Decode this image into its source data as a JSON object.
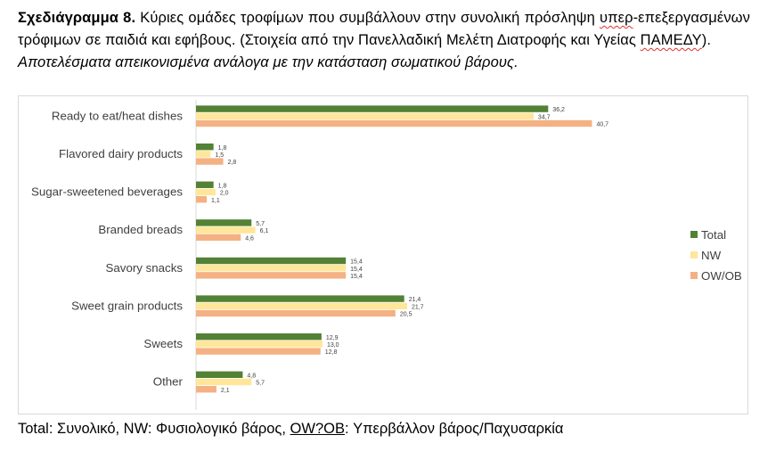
{
  "caption": {
    "lead": "Σχεδιάγραμμα 8.",
    "text_a": "Κύριες ομάδες τροφίμων που συμβάλλουν στην συνολική πρόσληψη ",
    "text_squig1": "υπερ",
    "text_b": "-επεξεργασμένων τρόφιμων σε παιδιά και εφήβους. (Στοιχεία από την Πανελλαδική Μελέτη Διατροφής και Υγείας ",
    "text_squig2": "ΠΑΜΕΔΥ",
    "text_c": ").",
    "line2": "Αποτελέσματα απεικονισμένα ανάλογα με την κατάσταση σωματικού βάρους."
  },
  "footnote": {
    "part1": "Total: Συνολικό, NW: Φυσιολογικό βάρος, ",
    "part2": "OW?OB",
    "part3": ": Υπερβάλλον βάρος/Παχυσαρκία"
  },
  "chart_data": {
    "type": "bar",
    "orientation": "horizontal",
    "categories": [
      "Ready to eat/heat dishes",
      "Flavored dairy products",
      "Sugar-sweetened beverages",
      "Branded breads",
      "Savory snacks",
      "Sweet grain products",
      "Sweets",
      "Other"
    ],
    "series": [
      {
        "name": "Total",
        "color": "#538135",
        "values": [
          36.2,
          1.8,
          1.8,
          5.7,
          15.4,
          21.4,
          12.9,
          4.8
        ]
      },
      {
        "name": "NW",
        "color": "#ffe699",
        "values": [
          34.7,
          1.5,
          2.0,
          6.1,
          15.4,
          21.7,
          13.0,
          5.7
        ]
      },
      {
        "name": "OW/OB",
        "color": "#f4b183",
        "values": [
          40.7,
          2.8,
          1.1,
          4.6,
          15.4,
          20.5,
          12.8,
          2.1
        ]
      }
    ],
    "data_labels": [
      [
        "36,2",
        "1,8",
        "1,8",
        "5,7",
        "15,4",
        "21,4",
        "12,9",
        "4,8"
      ],
      [
        "34,7",
        "1,5",
        "2,0",
        "6,1",
        "15,4",
        "21,7",
        "13,0",
        "5,7"
      ],
      [
        "40,7",
        "2,8",
        "1,1",
        "4,6",
        "15,4",
        "20,5",
        "12,8",
        "2,1"
      ]
    ],
    "xlim": [
      0,
      45
    ],
    "grid": false,
    "legend_position": "right"
  }
}
